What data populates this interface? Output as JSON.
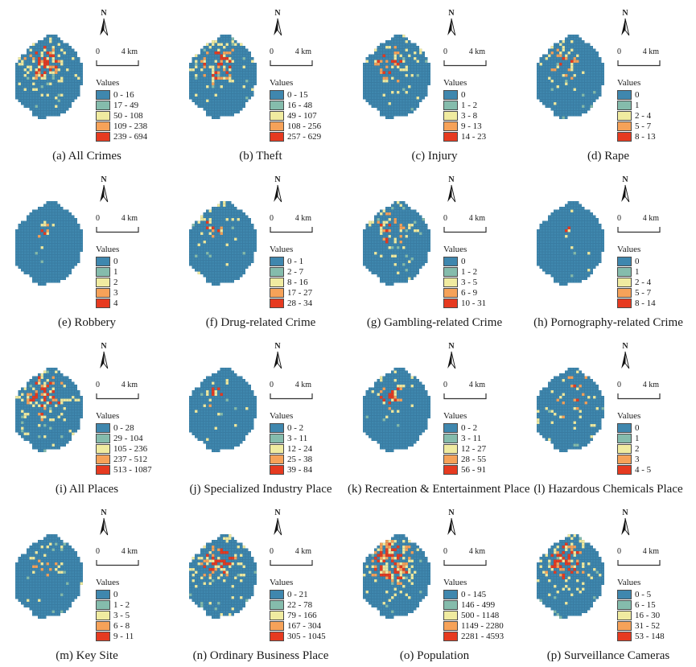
{
  "figure": {
    "north_label": "N",
    "legend_title": "Values",
    "scale": {
      "zero": "0",
      "distance": "4 km"
    },
    "colors": {
      "class1": "#3f87ae",
      "class2": "#85bcac",
      "class3": "#f0eba0",
      "class4": "#f6a259",
      "class5": "#e63a20",
      "grid_line": "#2e6a8e",
      "swatch_border": "#4a4a4a"
    },
    "panels": [
      {
        "id": "a",
        "caption": "(a) All Crimes",
        "classes": [
          "0 - 16",
          "17 - 49",
          "50 - 108",
          "109 - 238",
          "239 - 694"
        ],
        "map": {
          "seed": 11,
          "density": 0.6,
          "spread": 4.6,
          "scatter": 0.03,
          "core": 1.0
        }
      },
      {
        "id": "b",
        "caption": "(b) Theft",
        "classes": [
          "0 - 15",
          "16 - 48",
          "49 - 107",
          "108 - 256",
          "257 - 629"
        ],
        "map": {
          "seed": 22,
          "density": 0.55,
          "spread": 4.5,
          "scatter": 0.025,
          "core": 1.0
        }
      },
      {
        "id": "c",
        "caption": "(c) Injury",
        "classes": [
          "0",
          "1 - 2",
          "3 - 8",
          "9 - 13",
          "14 - 23"
        ],
        "map": {
          "seed": 33,
          "density": 0.35,
          "spread": 5.0,
          "scatter": 0.03,
          "core": 0.8
        }
      },
      {
        "id": "d",
        "caption": "(d) Rape",
        "classes": [
          "0",
          "1",
          "2 - 4",
          "5 - 7",
          "8 - 13"
        ],
        "map": {
          "seed": 44,
          "density": 0.32,
          "spread": 4.0,
          "scatter": 0.022,
          "core": 0.8
        }
      },
      {
        "id": "e",
        "caption": "(e) Robbery",
        "classes": [
          "0",
          "1",
          "2",
          "3",
          "4"
        ],
        "map": {
          "seed": 55,
          "density": 0.16,
          "spread": 2.4,
          "scatter": 0.006,
          "core": 0.9
        }
      },
      {
        "id": "f",
        "caption": "(f) Drug-related Crime",
        "classes": [
          "0 - 1",
          "2 - 7",
          "8 - 16",
          "17 - 27",
          "28 - 34"
        ],
        "map": {
          "seed": 66,
          "density": 0.34,
          "spread": 3.4,
          "scatter": 0.02,
          "core": 1.0
        }
      },
      {
        "id": "g",
        "caption": "(g) Gambling-related Crime",
        "classes": [
          "0",
          "1 - 2",
          "3 - 5",
          "6 - 9",
          "10 - 31"
        ],
        "map": {
          "seed": 77,
          "density": 0.38,
          "spread": 4.4,
          "scatter": 0.028,
          "core": 0.8
        }
      },
      {
        "id": "h",
        "caption": "(h) Pornography-related Crime",
        "classes": [
          "0",
          "1",
          "2 - 4",
          "5 - 7",
          "8 - 14"
        ],
        "map": {
          "seed": 88,
          "density": 0.17,
          "spread": 2.4,
          "scatter": 0.007,
          "core": 0.9
        }
      },
      {
        "id": "i",
        "caption": "(i) All Places",
        "classes": [
          "0 - 28",
          "29 - 104",
          "105 - 236",
          "237 - 512",
          "513 - 1087"
        ],
        "map": {
          "seed": 99,
          "density": 0.55,
          "spread": 5.0,
          "scatter": 0.04,
          "core": 1.0
        }
      },
      {
        "id": "j",
        "caption": "(j) Specialized Industry Place",
        "classes": [
          "0 - 2",
          "3 - 11",
          "12 - 24",
          "25 - 38",
          "39 - 84"
        ],
        "map": {
          "seed": 110,
          "density": 0.36,
          "spread": 3.0,
          "scatter": 0.02,
          "core": 1.1
        }
      },
      {
        "id": "k",
        "caption": "(k) Recreation & Entertainment Place",
        "classes": [
          "0 - 2",
          "3 - 11",
          "12 - 27",
          "28 - 55",
          "56 - 91"
        ],
        "map": {
          "seed": 121,
          "density": 0.42,
          "spread": 3.4,
          "scatter": 0.02,
          "core": 1.0
        }
      },
      {
        "id": "l",
        "caption": "(l) Hazardous Chemicals Place",
        "classes": [
          "0",
          "1",
          "2",
          "3",
          "4 - 5"
        ],
        "map": {
          "seed": 132,
          "density": 0.12,
          "spread": 6.5,
          "scatter": 0.024,
          "core": 0.8
        }
      },
      {
        "id": "m",
        "caption": "(m) Key Site",
        "classes": [
          "0",
          "1 - 2",
          "3 - 5",
          "6 - 8",
          "9 - 11"
        ],
        "map": {
          "seed": 143,
          "density": 0.32,
          "spread": 4.2,
          "scatter": 0.028,
          "core": 0.8
        }
      },
      {
        "id": "n",
        "caption": "(n) Ordinary Business Place",
        "classes": [
          "0 - 21",
          "22 - 78",
          "79 - 166",
          "167 - 304",
          "305 - 1045"
        ],
        "map": {
          "seed": 154,
          "density": 0.52,
          "spread": 4.6,
          "scatter": 0.035,
          "core": 1.1
        }
      },
      {
        "id": "o",
        "caption": "(o) Population",
        "classes": [
          "0 - 145",
          "146 - 499",
          "500 - 1148",
          "1149 - 2280",
          "2281 - 4593"
        ],
        "map": {
          "seed": 165,
          "density": 0.65,
          "spread": 4.6,
          "scatter": 0.05,
          "core": 1.5
        }
      },
      {
        "id": "p",
        "caption": "(p) Surveillance Cameras",
        "classes": [
          "0 - 5",
          "6 - 15",
          "16 - 30",
          "31 - 52",
          "53 - 148"
        ],
        "map": {
          "seed": 176,
          "density": 0.6,
          "spread": 4.6,
          "scatter": 0.04,
          "core": 1.2
        }
      }
    ]
  }
}
